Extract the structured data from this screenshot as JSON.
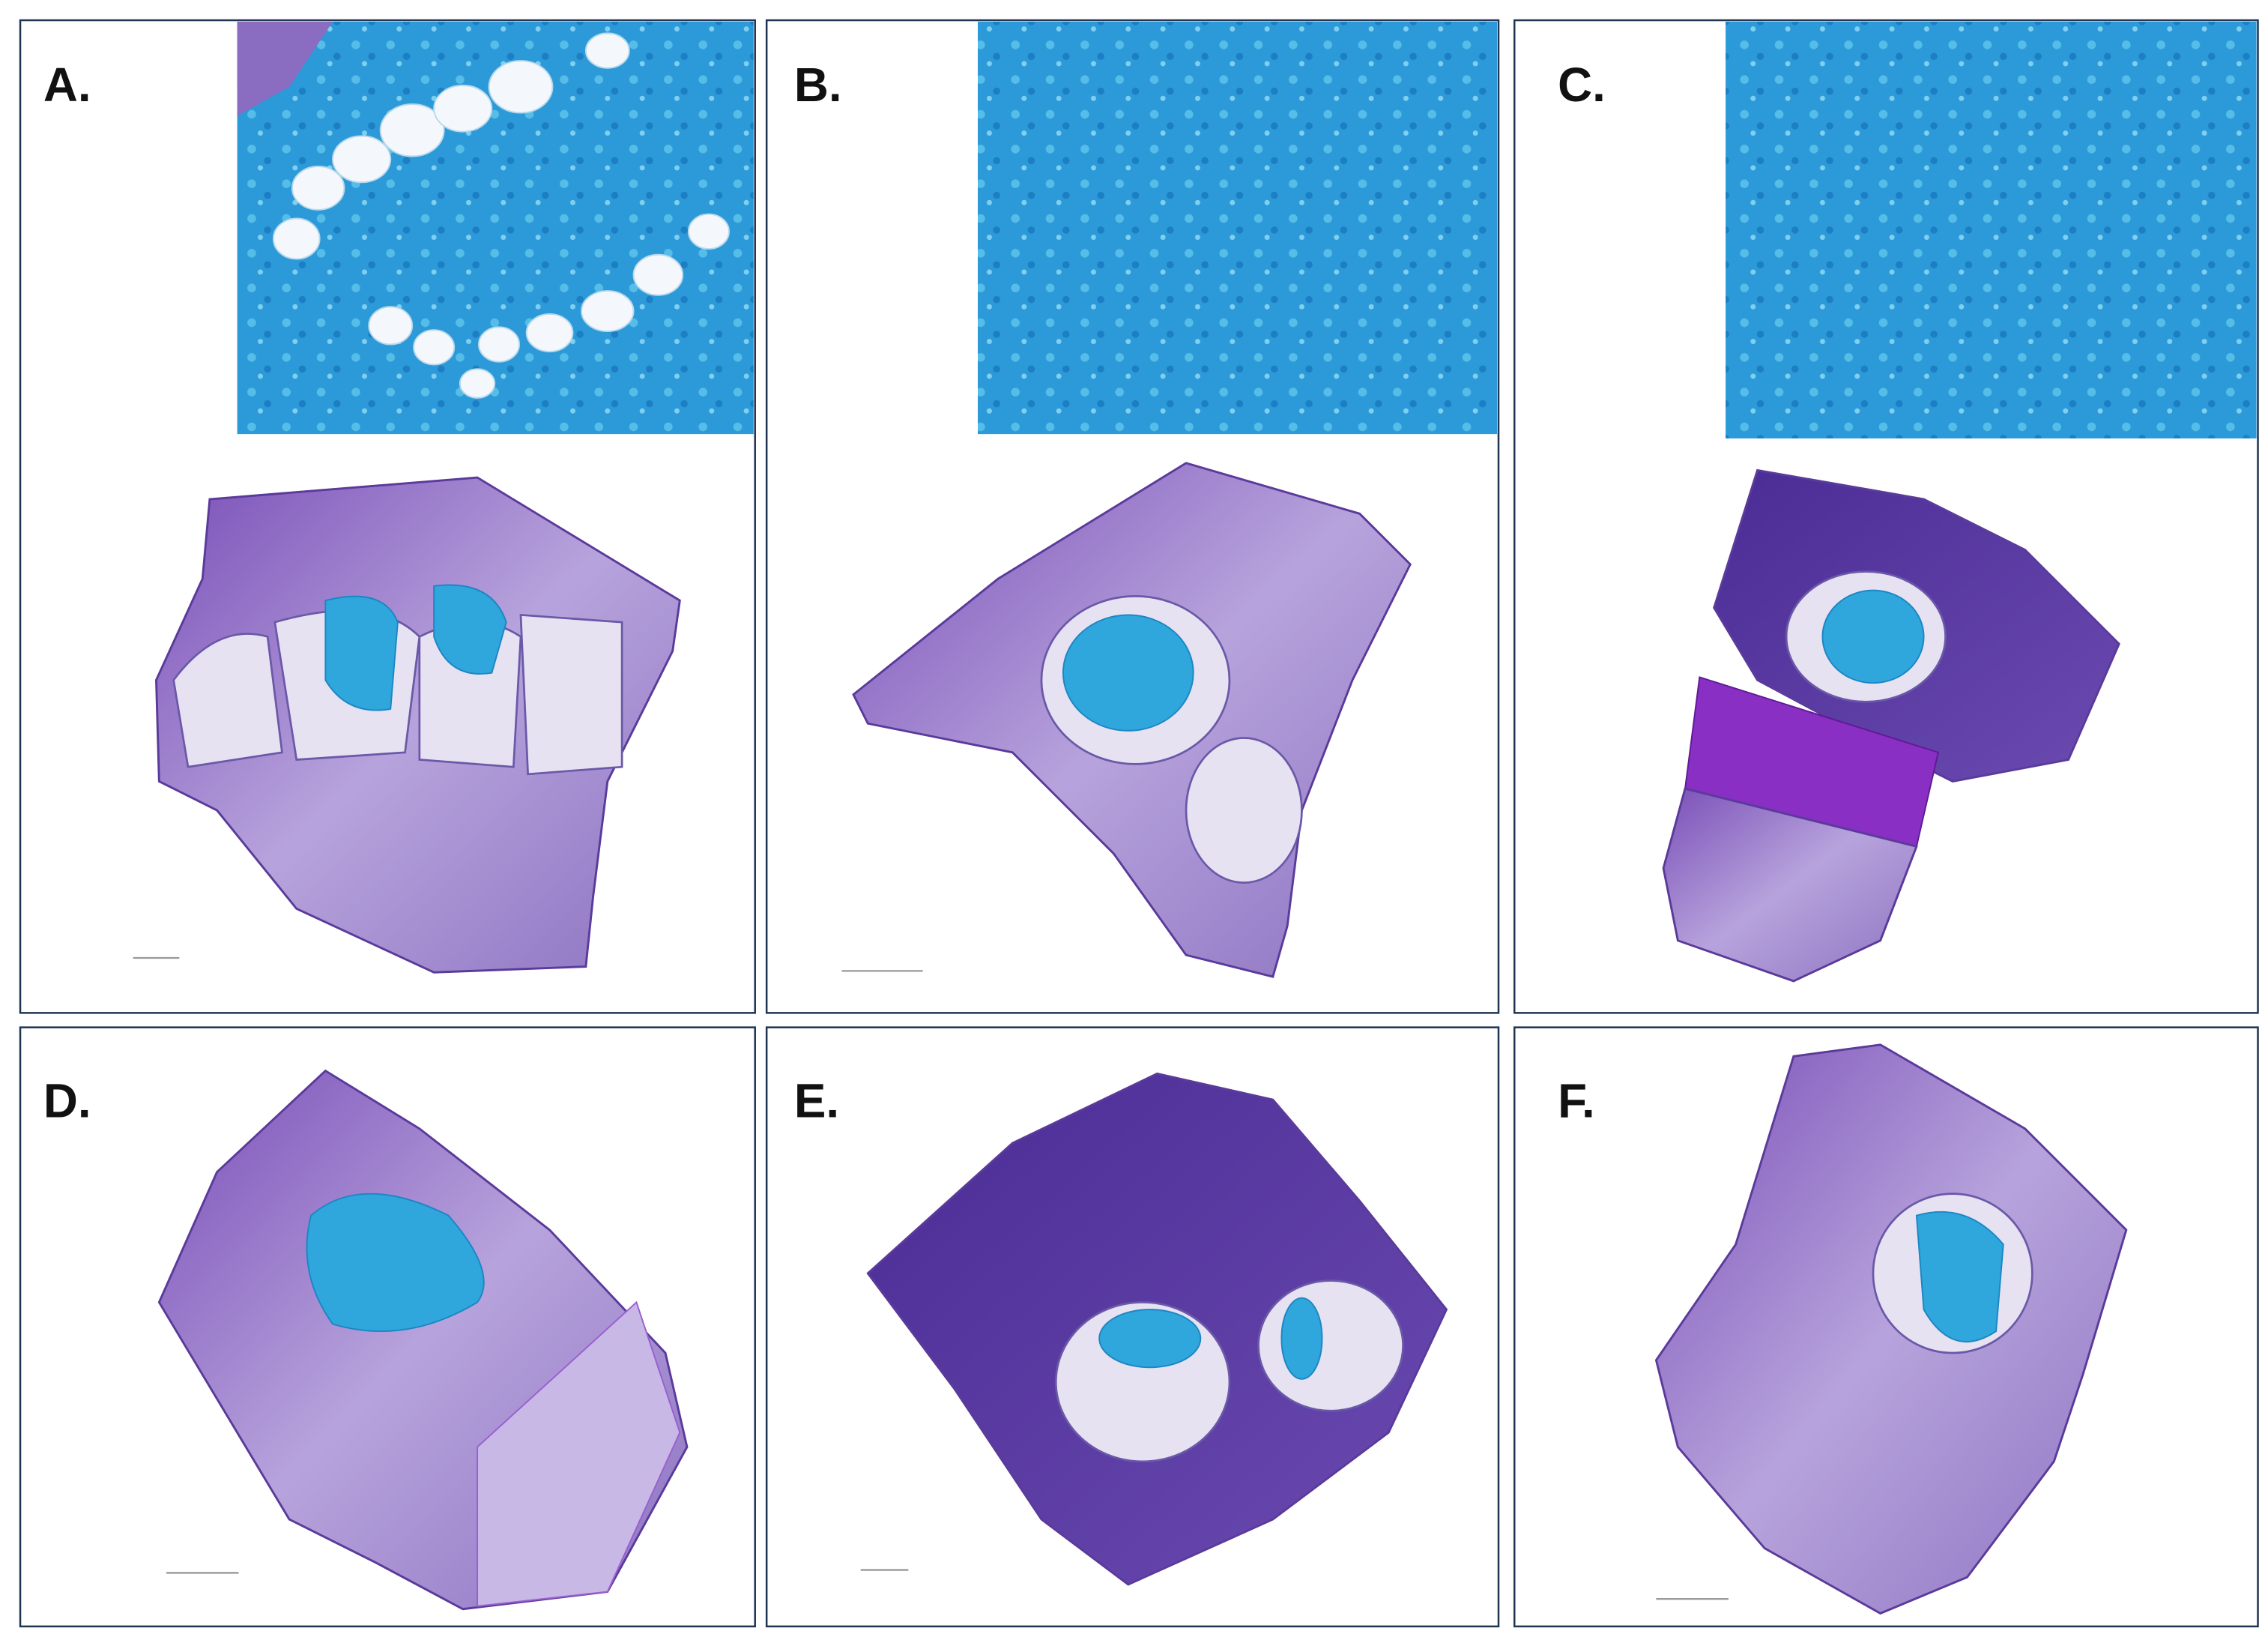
{
  "panels": [
    {
      "label": "A."
    },
    {
      "label": "B."
    },
    {
      "label": "C."
    },
    {
      "label": "D."
    },
    {
      "label": "E."
    },
    {
      "label": "F."
    }
  ]
}
